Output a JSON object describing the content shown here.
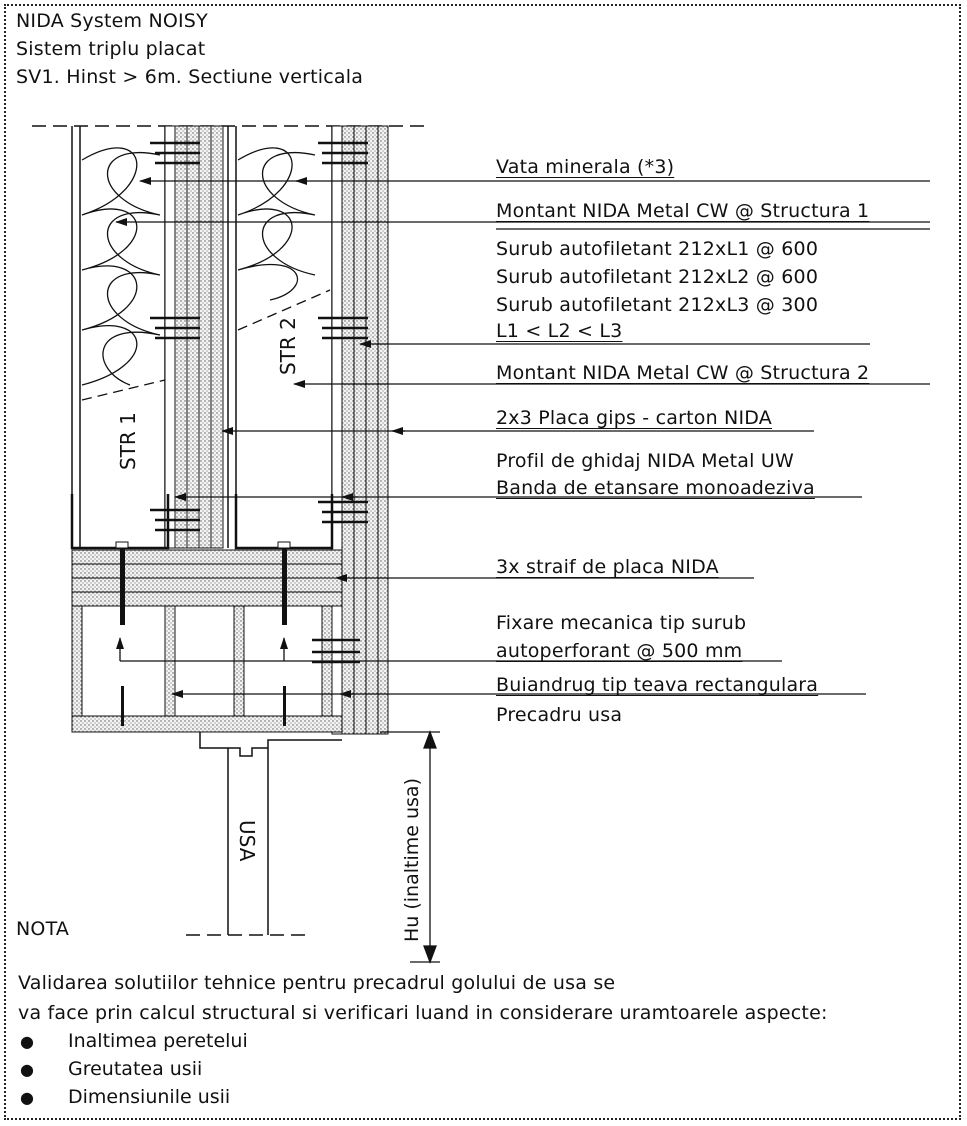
{
  "header": {
    "line1": "NIDA System NOISY",
    "line2": "Sistem triplu placat",
    "line3": "SV1. Hinst > 6m. Sectiune verticala"
  },
  "labels": {
    "vata": "Vata minerala (*3)",
    "montant1": "Montant NIDA Metal CW @ Structura 1",
    "surub1": "Surub autofiletant 212xL1 @ 600",
    "surub2": "Surub autofiletant 212xL2 @ 600",
    "surub3": "Surub autofiletant 212xL3 @ 300",
    "lcond": "L1 < L2 < L3",
    "montant2": "Montant NIDA Metal CW @ Structura 2",
    "placa": "2x3 Placa gips - carton NIDA",
    "profil": "Profil de ghidaj NIDA Metal UW",
    "banda": "Banda de etansare monoadeziva",
    "straif": "3x straif de placa NIDA",
    "fixare1": "Fixare mecanica tip surub",
    "fixare2": "autoperforant @ 500 mm",
    "buiandrug": "Buiandrug tip teava rectangulara",
    "precadru": "Precadru usa"
  },
  "drawing_text": {
    "str1": "STR 1",
    "str2": "STR 2",
    "usa": "USA",
    "hu": "Hu (inaltime usa)"
  },
  "nota": {
    "title": "NOTA",
    "line1": "Validarea solutiilor tehnice pentru precadrul golului de usa se",
    "line2": "va face prin calcul structural si verificari luand in considerare uramtoarele aspecte:",
    "bullets": [
      "Inaltimea peretelui",
      "Greutatea usii",
      "Dimensiunile usii"
    ]
  }
}
